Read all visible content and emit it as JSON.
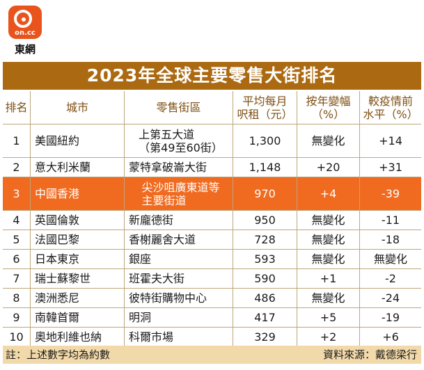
{
  "logo": {
    "on_text": "on.cc",
    "name": "東網"
  },
  "chart_data": {
    "type": "table",
    "title": "2023年全球主要零售大街排名",
    "columns": [
      "排名",
      "城市",
      "零售街區",
      "平均每月\n呎租（元）",
      "按年變幅\n（%）",
      "較疫情前\n水平（%）"
    ],
    "rows": [
      {
        "rank": "1",
        "city": "美國紐約",
        "street": "上第五大道\n（第49至60街）",
        "rent": "1,300",
        "yoy": "無變化",
        "vs_pre": "+14",
        "highlight": false
      },
      {
        "rank": "2",
        "city": "意大利米蘭",
        "street": "蒙特拿破崙大街",
        "rent": "1,148",
        "yoy": "+20",
        "vs_pre": "+31",
        "highlight": false
      },
      {
        "rank": "3",
        "city": "中國香港",
        "street": "尖沙咀廣東道等\n主要街道",
        "rent": "970",
        "yoy": "+4",
        "vs_pre": "-39",
        "highlight": true
      },
      {
        "rank": "4",
        "city": "英國倫敦",
        "street": "新龐德街",
        "rent": "950",
        "yoy": "無變化",
        "vs_pre": "-11",
        "highlight": false
      },
      {
        "rank": "5",
        "city": "法國巴黎",
        "street": "香榭麗舍大道",
        "rent": "728",
        "yoy": "無變化",
        "vs_pre": "-18",
        "highlight": false
      },
      {
        "rank": "6",
        "city": "日本東京",
        "street": "銀座",
        "rent": "593",
        "yoy": "無變化",
        "vs_pre": "無變化",
        "highlight": false
      },
      {
        "rank": "7",
        "city": "瑞士蘇黎世",
        "street": "班霍夫大街",
        "rent": "590",
        "yoy": "+1",
        "vs_pre": "-2",
        "highlight": false
      },
      {
        "rank": "8",
        "city": "澳洲悉尼",
        "street": "彼特街購物中心",
        "rent": "486",
        "yoy": "無變化",
        "vs_pre": "-24",
        "highlight": false
      },
      {
        "rank": "9",
        "city": "南韓首爾",
        "street": "明洞",
        "rent": "417",
        "yoy": "+5",
        "vs_pre": "-19",
        "highlight": false
      },
      {
        "rank": "10",
        "city": "奧地利維也納",
        "street": "科爾市場",
        "rent": "329",
        "yoy": "+2",
        "vs_pre": "+6",
        "highlight": false
      }
    ],
    "note": "註：上述數字均為約數",
    "source": "資料來源：戴德梁行"
  },
  "colors": {
    "banner": "#ab6a12",
    "highlight": "#f06a1f",
    "footer": "#f2d9a9",
    "header_text": "#7d4f13",
    "logo": "#e8541c"
  }
}
